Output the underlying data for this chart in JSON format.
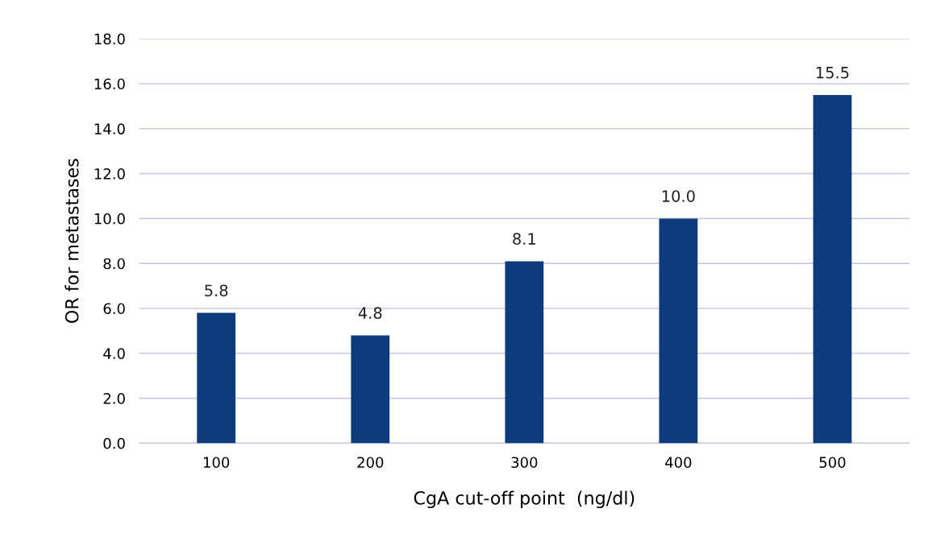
{
  "chart_data": {
    "type": "bar",
    "xlabel": "CgA cut-off point  (ng/dl)",
    "ylabel": "OR for metastases",
    "categories": [
      "100",
      "200",
      "300",
      "400",
      "500"
    ],
    "values": [
      5.8,
      4.8,
      8.1,
      10.0,
      15.5
    ],
    "color": "#0d3b7c",
    "ylim": [
      0,
      18
    ],
    "yticks": [
      {
        "value": 0,
        "label": "0.0"
      },
      {
        "value": 2,
        "label": "2.0"
      },
      {
        "value": 4,
        "label": "4.0"
      },
      {
        "value": 6,
        "label": "6.0"
      },
      {
        "value": 8,
        "label": "8.0"
      },
      {
        "value": 10,
        "label": "10.0"
      },
      {
        "value": 12,
        "label": "12.0"
      },
      {
        "value": 14,
        "label": "14.0"
      },
      {
        "value": 16,
        "label": "16.0"
      },
      {
        "value": 18,
        "label": "18.0"
      }
    ],
    "value_labels": [
      "5.8",
      "4.8",
      "8.1",
      "10.0",
      "15.5"
    ],
    "grid": "y"
  }
}
